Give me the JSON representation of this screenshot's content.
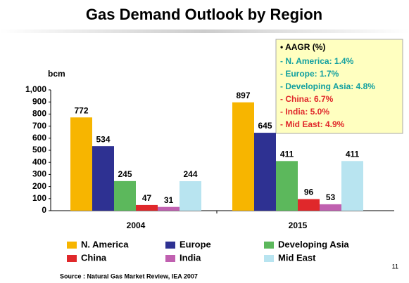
{
  "chart_data": {
    "type": "bar",
    "title": "Gas Demand Outlook by Region",
    "y_label": "bcm",
    "categories": [
      "2004",
      "2015"
    ],
    "series": [
      {
        "name": "N. America",
        "color": "#f7b500",
        "values": [
          772,
          897
        ]
      },
      {
        "name": "Europe",
        "color": "#2e3192",
        "values": [
          534,
          645
        ]
      },
      {
        "name": "Developing Asia",
        "color": "#5cb85c",
        "values": [
          245,
          411
        ]
      },
      {
        "name": "China",
        "color": "#e0282b",
        "values": [
          47,
          96
        ]
      },
      {
        "name": "India",
        "color": "#c060b0",
        "values": [
          31,
          53
        ]
      },
      {
        "name": "Mid East",
        "color": "#b8e4f0",
        "values": [
          244,
          411
        ]
      }
    ],
    "ylim": [
      0,
      1000
    ],
    "yticks": [
      0,
      100,
      200,
      300,
      400,
      500,
      600,
      700,
      800,
      900,
      {
        "value": 1000,
        "label": "1,000"
      }
    ],
    "annotation": {
      "title": "• AAGR (%)",
      "items": [
        {
          "text": "- N. America: 1.4%",
          "color": "#12a0a0"
        },
        {
          "text": "- Europe: 1.7%",
          "color": "#12a0a0"
        },
        {
          "text": "- Developing Asia: 4.8%",
          "color": "#12a0a0"
        },
        {
          "text": "- China: 6.7%",
          "color": "#e0282b"
        },
        {
          "text": "- India: 5.0%",
          "color": "#e0282b"
        },
        {
          "text": "- Mid East: 4.9%",
          "color": "#e0282b"
        }
      ]
    },
    "source": "Source : Natural Gas Market Review, IEA 2007",
    "page_number": "11"
  }
}
